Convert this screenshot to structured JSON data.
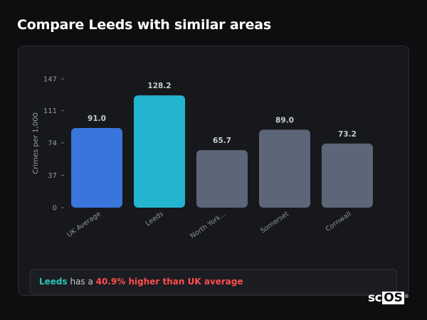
{
  "page": {
    "title": "Compare Leeds with similar areas"
  },
  "chart_data": {
    "type": "bar",
    "ylabel": "Crimes per 1,000",
    "xlabel": "",
    "ylim": [
      0,
      147
    ],
    "yticks": [
      0,
      37,
      74,
      111,
      147
    ],
    "categories": [
      "UK Average",
      "Leeds",
      "North York...",
      "Somerset",
      "Cornwall"
    ],
    "values": [
      91.0,
      128.2,
      65.7,
      89.0,
      73.2
    ],
    "value_labels": [
      "91.0",
      "128.2",
      "65.7",
      "89.0",
      "73.2"
    ],
    "colors": [
      "#3a75db",
      "#23b5cf",
      "#5c6678",
      "#5c6678",
      "#5c6678"
    ],
    "grid": false,
    "legend": "none"
  },
  "callout": {
    "area": "Leeds",
    "text_mid": " has a ",
    "difference": "40.9% higher than UK average",
    "area_color": "#2ec5b6",
    "difference_color": "#ff4d4d"
  },
  "brand": {
    "part1": "sc",
    "part2": "OS",
    "mark": "®"
  }
}
